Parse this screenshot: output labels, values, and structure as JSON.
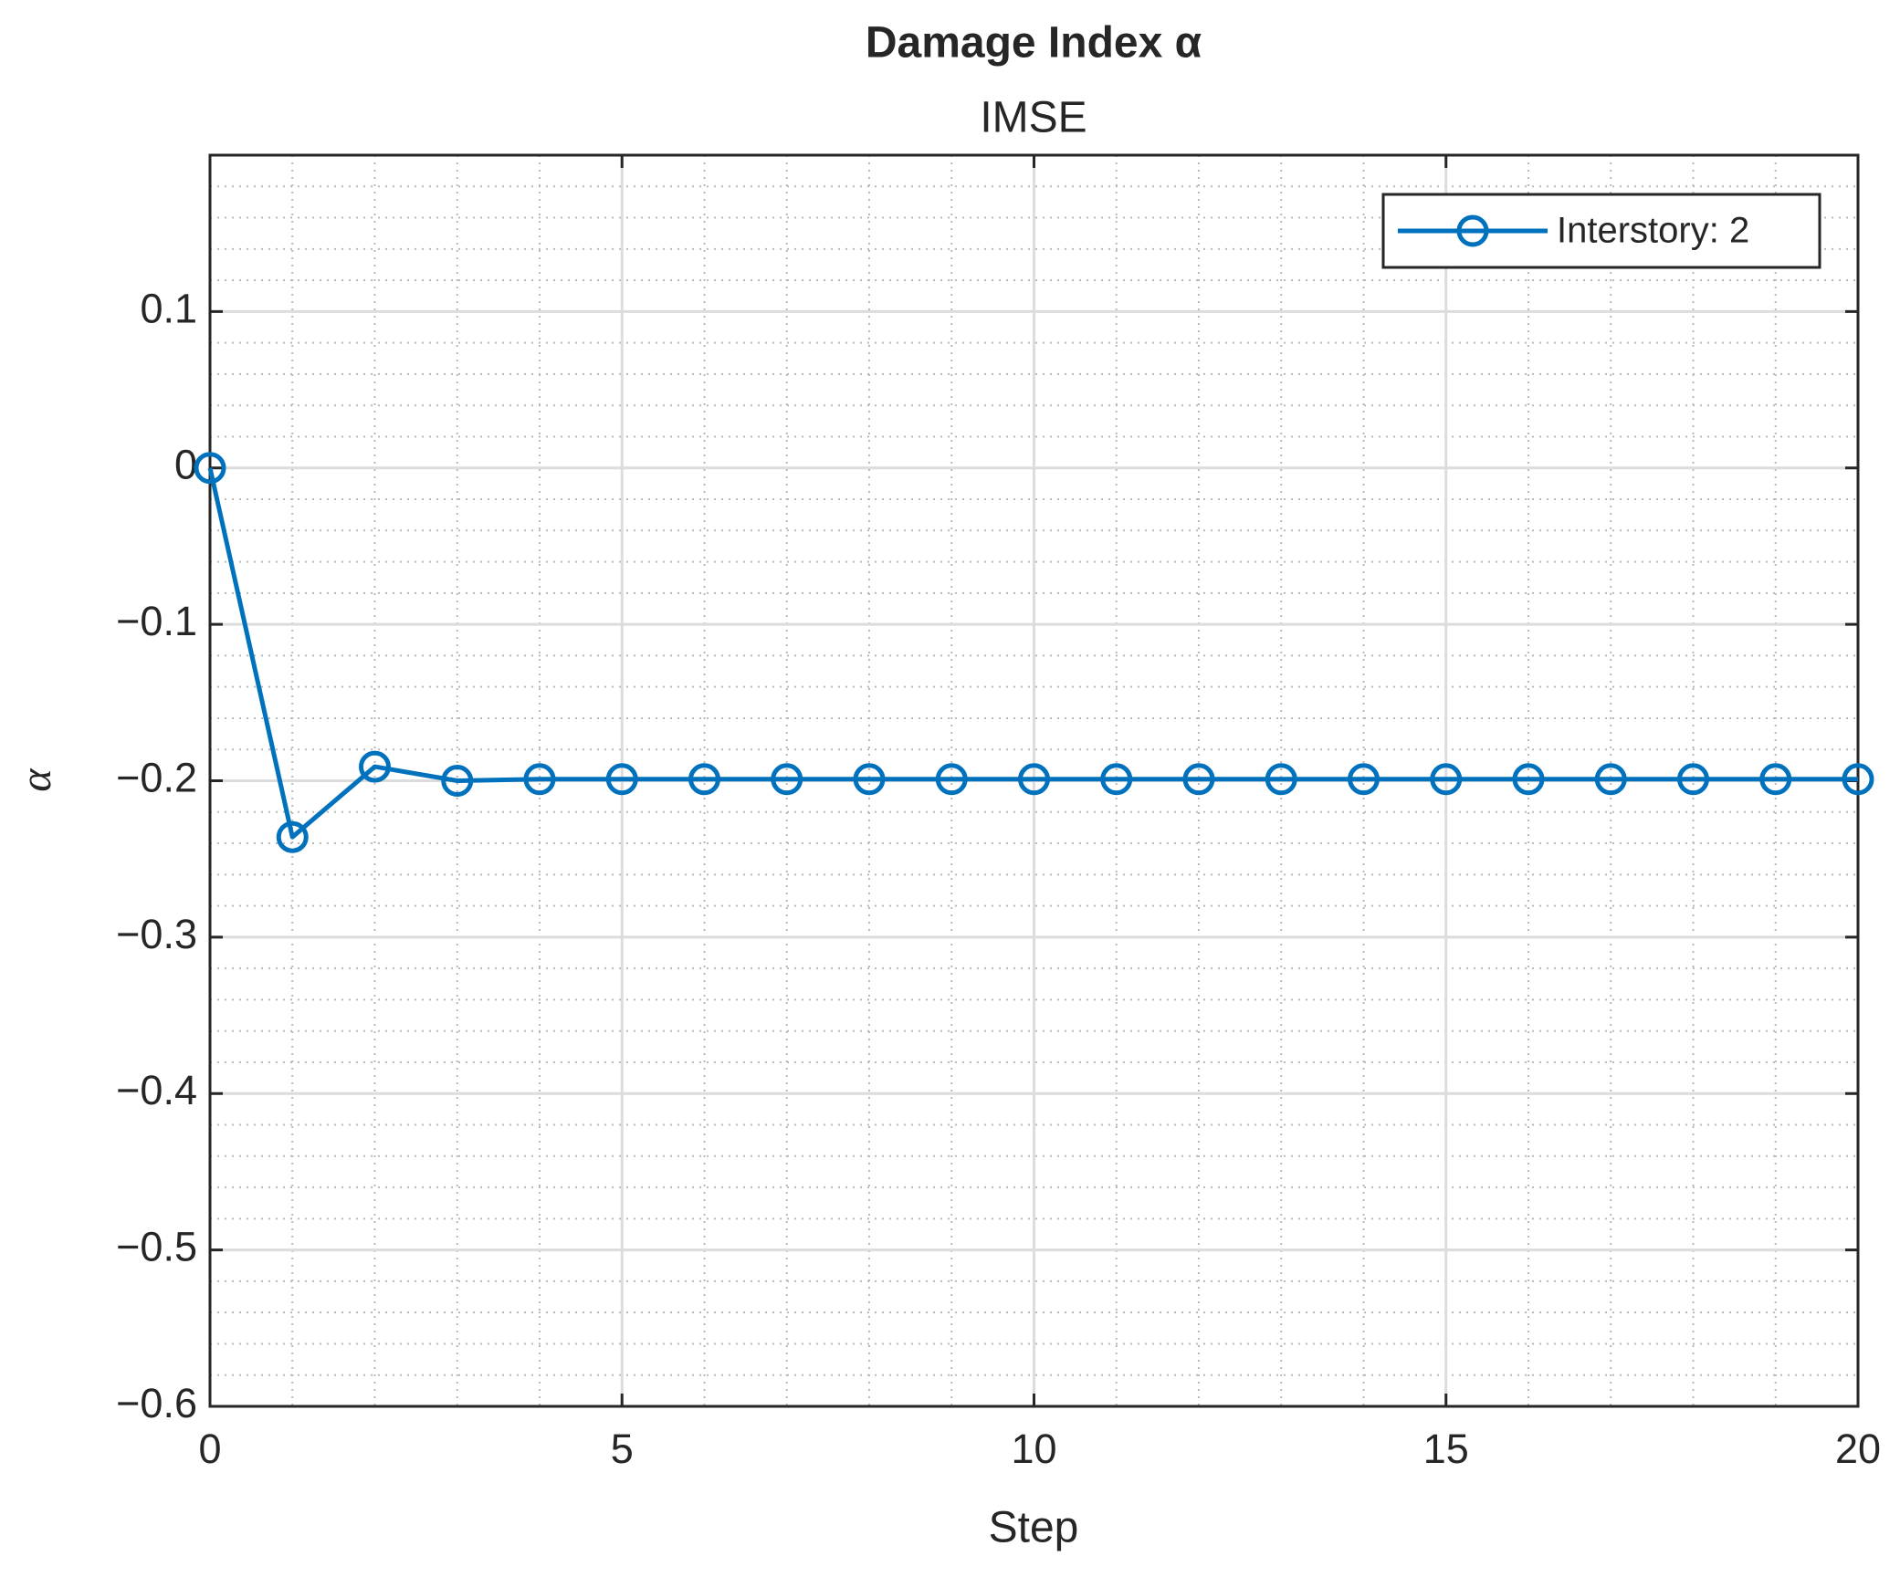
{
  "chart_data": {
    "type": "line",
    "title": "Damage Index α",
    "subtitle": "IMSE",
    "x_label": "Step",
    "y_label": "α",
    "x": [
      0,
      1,
      2,
      3,
      4,
      5,
      6,
      7,
      8,
      9,
      10,
      11,
      12,
      13,
      14,
      15,
      16,
      17,
      18,
      19,
      20
    ],
    "series": [
      {
        "name": "Interstory: 2",
        "color": "#0072bd",
        "values": [
          0,
          -0.236,
          -0.191,
          -0.2,
          -0.199,
          -0.199,
          -0.199,
          -0.199,
          -0.199,
          -0.199,
          -0.199,
          -0.199,
          -0.199,
          -0.199,
          -0.199,
          -0.199,
          -0.199,
          -0.199,
          -0.199,
          -0.199,
          -0.199
        ]
      }
    ],
    "xlim": [
      0,
      20
    ],
    "xticks": [
      0,
      5,
      10,
      15,
      20
    ],
    "ylim": [
      -0.6,
      0.2
    ],
    "yticks": [
      {
        "value": -0.6,
        "label": "−0.6"
      },
      {
        "value": -0.5,
        "label": "−0.5"
      },
      {
        "value": -0.4,
        "label": "−0.4"
      },
      {
        "value": -0.3,
        "label": "−0.3"
      },
      {
        "value": -0.2,
        "label": "−0.2"
      },
      {
        "value": -0.1,
        "label": "−0.1"
      },
      0,
      0.1
    ],
    "grid": true,
    "minor_grid": true,
    "legend": "northeast"
  }
}
